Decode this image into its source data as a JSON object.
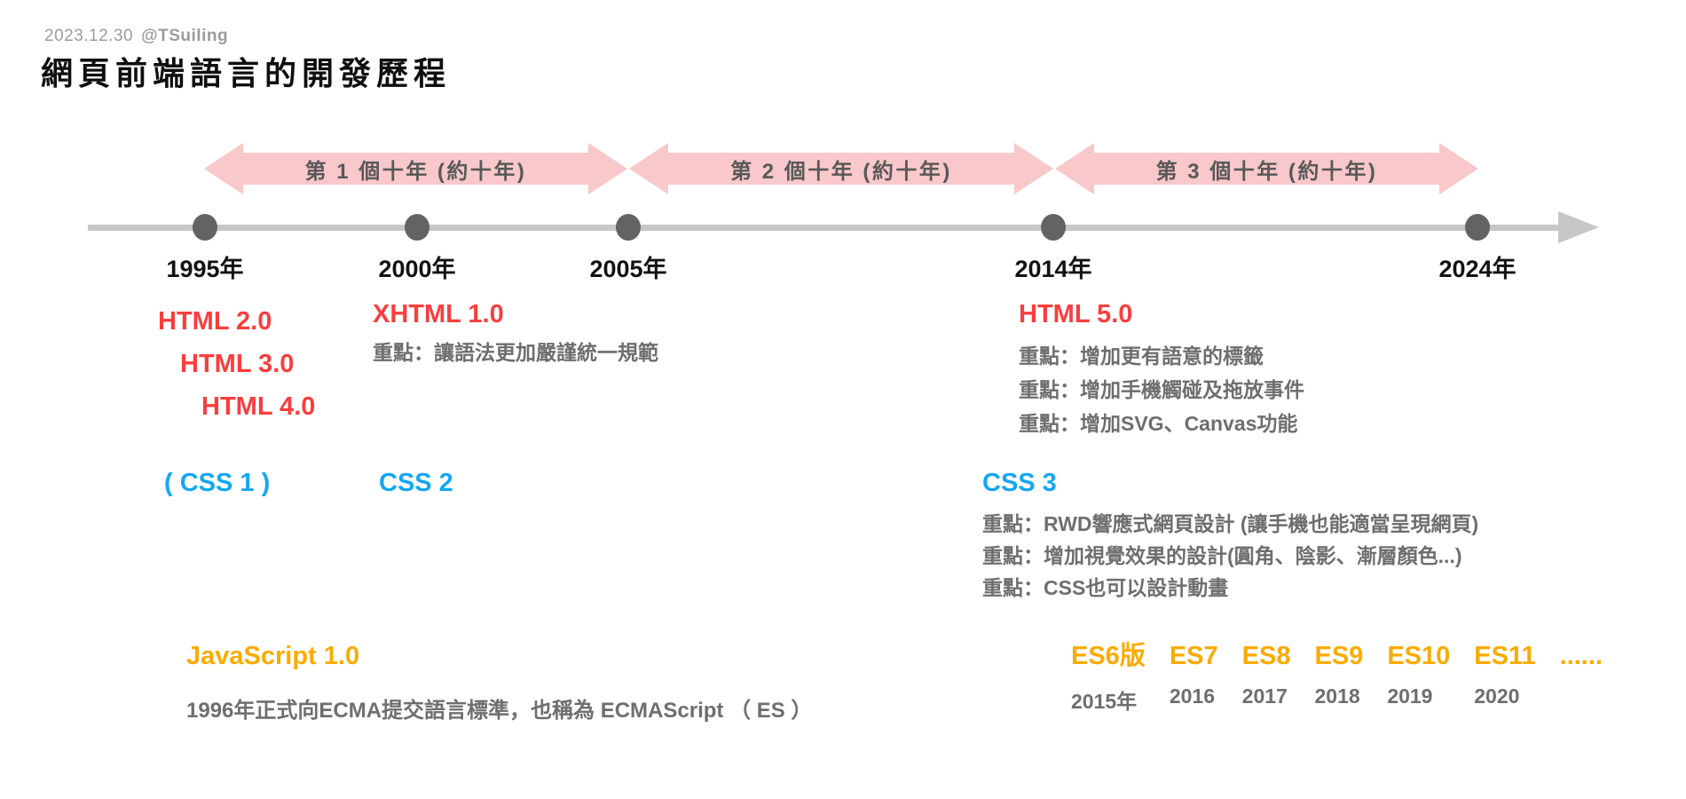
{
  "header": {
    "date": "2023.12.30",
    "author": "@TSuiling",
    "title": "網頁前端語言的開發歷程"
  },
  "colors": {
    "html_red": "#fa3d3d",
    "css_blue": "#14a7f3",
    "js_orange": "#f9ab00",
    "arrow_pink": "#f9c8ca",
    "label_gray": "#595959",
    "note_gray": "#6e6e6e",
    "dot_gray": "#636363",
    "line_gray": "#c7c7c7",
    "year_black": "#121212"
  },
  "decades": [
    {
      "label": "第 1 個十年 (約十年)"
    },
    {
      "label": "第 2 個十年 (約十年)"
    },
    {
      "label": "第 3 個十年 (約十年)"
    }
  ],
  "timeline": {
    "years": [
      "1995年",
      "2000年",
      "2005年",
      "2014年",
      "2024年"
    ]
  },
  "sections": {
    "html_early": {
      "versions": [
        "HTML 2.0",
        "HTML 3.0",
        "HTML 4.0"
      ]
    },
    "xhtml": {
      "title": "XHTML 1.0",
      "notes": [
        "重點：讓語法更加嚴謹統一規範"
      ]
    },
    "html5": {
      "title": "HTML 5.0",
      "notes": [
        "重點：增加更有語意的標籤",
        "重點：增加手機觸碰及拖放事件",
        "重點：增加SVG、Canvas功能"
      ]
    },
    "css1_label": "( CSS 1 )",
    "css2_label": "CSS 2",
    "css3": {
      "title": "CSS 3",
      "notes": [
        "重點：RWD響應式網頁設計 (讓手機也能適當呈現網頁)",
        "重點：增加視覺效果的設計(圓角、陰影、漸層顏色...)",
        "重點：CSS也可以設計動畫"
      ]
    },
    "javascript": {
      "title": "JavaScript 1.0",
      "note": "1996年正式向ECMA提交語言標準，也稱為 ECMAScript （ ES ）"
    },
    "es": {
      "items": [
        {
          "version": "ES6版",
          "year": "2015年"
        },
        {
          "version": "ES7",
          "year": "2016"
        },
        {
          "version": "ES8",
          "year": "2017"
        },
        {
          "version": "ES9",
          "year": "2018"
        },
        {
          "version": "ES10",
          "year": "2019"
        },
        {
          "version": "ES11",
          "year": "2020"
        },
        {
          "version": "......",
          "year": ""
        }
      ]
    }
  }
}
